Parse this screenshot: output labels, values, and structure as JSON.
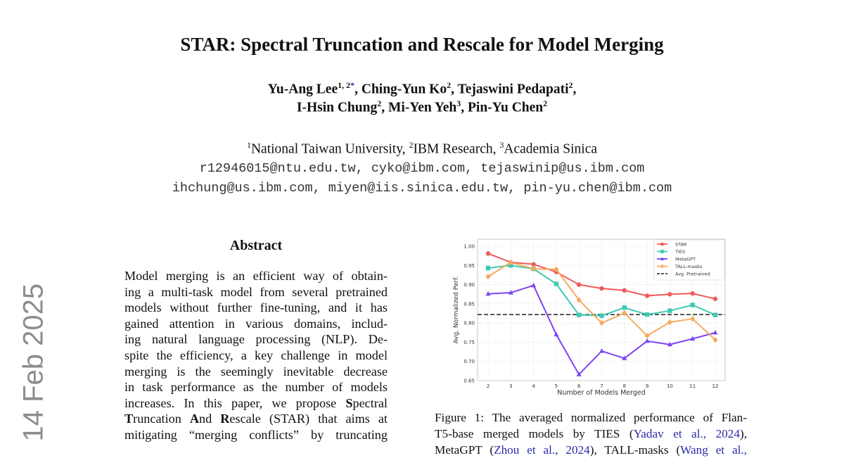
{
  "title": "STAR: Spectral Truncation and Rescale for Model Merging",
  "authors": {
    "line1": [
      {
        "n": "Yu-Ang Lee",
        "s": "1, 2",
        "star": "*"
      },
      {
        "n": ", Ching-Yun Ko",
        "s": "2"
      },
      {
        "n": ", Tejaswini Pedapati",
        "s": "2"
      },
      {
        "n": ","
      }
    ],
    "line2": [
      {
        "n": "I-Hsin Chung",
        "s": "2"
      },
      {
        "n": ", Mi-Yen Yeh",
        "s": "3"
      },
      {
        "n": ", Pin-Yu Chen",
        "s": "2"
      }
    ]
  },
  "affiliations": [
    {
      "s": "1",
      "n": "National Taiwan University, "
    },
    {
      "s": "2",
      "n": "IBM Research, "
    },
    {
      "s": "3",
      "n": "Academia Sinica"
    }
  ],
  "emails": [
    "r12946015@ntu.edu.tw, cyko@ibm.com, tejaswinip@us.ibm.com",
    "ihchung@us.ibm.com, miyen@iis.sinica.edu.tw, pin-yu.chen@ibm.com"
  ],
  "side_stamp": "14 Feb 2025",
  "abstract": {
    "heading": "Abstract",
    "lines": [
      [
        {
          "t": "Model merging is an efficient way of obtain-"
        }
      ],
      [
        {
          "t": "ing a multi-task model from several pretrained"
        }
      ],
      [
        {
          "t": "models without further fine-tuning, and it has"
        }
      ],
      [
        {
          "t": "gained attention in various domains, includ-"
        }
      ],
      [
        {
          "t": "ing natural language processing (NLP). De-"
        }
      ],
      [
        {
          "t": "spite the efficiency, a key challenge in model"
        }
      ],
      [
        {
          "t": "merging is the seemingly inevitable decrease"
        }
      ],
      [
        {
          "t": "in task performance as the number of models"
        }
      ],
      [
        {
          "t": "increases.  In this paper, we propose "
        },
        {
          "t": "S",
          "b": true
        },
        {
          "t": "pectral"
        }
      ],
      [
        {
          "t": "T",
          "b": true
        },
        {
          "t": "runcation "
        },
        {
          "t": "A",
          "b": true
        },
        {
          "t": "nd "
        },
        {
          "t": "R",
          "b": true
        },
        {
          "t": "escale (STAR) that aims at"
        }
      ],
      [
        {
          "t": "mitigating “merging conflicts” by truncating"
        }
      ]
    ]
  },
  "caption": {
    "lines": [
      [
        {
          "t": "Figure 1: The averaged normalized performance of Flan-"
        }
      ],
      [
        {
          "t": "T5-base merged models by TIES ("
        },
        {
          "t": "Yadav et al., 2024",
          "c": true
        },
        {
          "t": "),"
        }
      ],
      [
        {
          "t": "MetaGPT ("
        },
        {
          "t": "Zhou et al., 2024",
          "c": true
        },
        {
          "t": "), TALL-masks ("
        },
        {
          "t": "Wang et al.,",
          "c": true
        }
      ]
    ]
  },
  "chart_data": {
    "type": "line",
    "xlabel": "Number of Models Merged",
    "ylabel": "Avg. Normalized Perf.",
    "x": [
      2,
      3,
      4,
      5,
      6,
      7,
      8,
      9,
      10,
      11,
      12
    ],
    "ylim": [
      0.65,
      1.0
    ],
    "yticks": [
      0.65,
      0.7,
      0.75,
      0.8,
      0.85,
      0.9,
      0.95,
      1.0
    ],
    "grid": true,
    "legend_position": "top-right",
    "series": [
      {
        "name": "STAR",
        "color": "#f05a5a",
        "marker": "circle",
        "values": [
          0.981,
          0.958,
          0.953,
          0.933,
          0.9,
          0.89,
          0.885,
          0.871,
          0.875,
          0.877,
          0.863
        ]
      },
      {
        "name": "TIES",
        "color": "#3ec9b2",
        "marker": "square",
        "values": [
          0.943,
          0.95,
          0.941,
          0.902,
          0.821,
          0.819,
          0.84,
          0.822,
          0.832,
          0.847,
          0.821
        ]
      },
      {
        "name": "MetaGPT",
        "color": "#7c45f0",
        "marker": "triangle",
        "values": [
          0.876,
          0.879,
          0.898,
          0.77,
          0.666,
          0.727,
          0.708,
          0.753,
          0.744,
          0.759,
          0.775
        ]
      },
      {
        "name": "TALL-masks",
        "color": "#f5aa5c",
        "marker": "diamond",
        "values": [
          0.921,
          0.958,
          0.941,
          0.94,
          0.86,
          0.8,
          0.826,
          0.767,
          0.802,
          0.811,
          0.756
        ]
      }
    ],
    "reference": {
      "name": "Avg. Pretrained",
      "value": 0.822,
      "color": "#222222"
    }
  }
}
